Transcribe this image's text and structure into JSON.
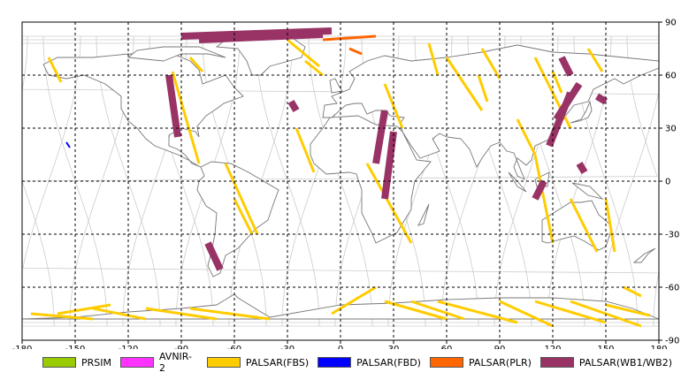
{
  "map": {
    "x_ticks": [
      "-180",
      "-150",
      "-120",
      "-90",
      "-60",
      "-30",
      "0",
      "30",
      "60",
      "90",
      "120",
      "150",
      "180"
    ],
    "y_ticks_right": [
      "90",
      "60",
      "30",
      "0",
      "-30",
      "-60",
      "-90"
    ],
    "lon_range": [
      -180,
      180
    ],
    "lat_range": [
      -90,
      90
    ],
    "grid": "dashed",
    "land_color": "#777777",
    "orbit_color": "#cccccc"
  },
  "legend": [
    {
      "label": "PRSIM",
      "color": "#99cc00"
    },
    {
      "label": "AVNIR-2",
      "color": "#ff33ff"
    },
    {
      "label": "PALSAR(FBS)",
      "color": "#ffcc00"
    },
    {
      "label": "PALSAR(FBD)",
      "color": "#0000ff"
    },
    {
      "label": "PALSAR(PLR)",
      "color": "#ff6600"
    },
    {
      "label": "PALSAR(WB1/WB2)",
      "color": "#993366"
    }
  ],
  "observations": {
    "fbs_swaths": [
      [
        [
          -165,
          70
        ],
        [
          -158,
          56
        ]
      ],
      [
        [
          -95,
          62
        ],
        [
          -80,
          10
        ]
      ],
      [
        [
          -65,
          10
        ],
        [
          -47,
          -30
        ]
      ],
      [
        [
          -60,
          -10
        ],
        [
          -50,
          -30
        ]
      ],
      [
        [
          -85,
          70
        ],
        [
          -78,
          62
        ]
      ],
      [
        [
          -30,
          80
        ],
        [
          -12,
          65
        ]
      ],
      [
        [
          -20,
          68
        ],
        [
          -10,
          60
        ]
      ],
      [
        [
          -25,
          30
        ],
        [
          -15,
          5
        ]
      ],
      [
        [
          25,
          55
        ],
        [
          35,
          30
        ]
      ],
      [
        [
          15,
          10
        ],
        [
          40,
          -35
        ]
      ],
      [
        [
          20,
          -60
        ],
        [
          -5,
          -75
        ]
      ],
      [
        [
          50,
          78
        ],
        [
          55,
          60
        ]
      ],
      [
        [
          80,
          75
        ],
        [
          90,
          58
        ]
      ],
      [
        [
          60,
          70
        ],
        [
          80,
          40
        ]
      ],
      [
        [
          78,
          60
        ],
        [
          83,
          45
        ]
      ],
      [
        [
          110,
          70
        ],
        [
          130,
          30
        ]
      ],
      [
        [
          100,
          35
        ],
        [
          110,
          15
        ]
      ],
      [
        [
          110,
          15
        ],
        [
          120,
          -35
        ]
      ],
      [
        [
          130,
          -10
        ],
        [
          145,
          -40
        ]
      ],
      [
        [
          140,
          75
        ],
        [
          148,
          62
        ]
      ],
      [
        [
          120,
          62
        ],
        [
          125,
          50
        ]
      ],
      [
        [
          150,
          -10
        ],
        [
          155,
          -40
        ]
      ],
      [
        [
          160,
          -60
        ],
        [
          170,
          -65
        ]
      ],
      [
        [
          -175,
          -75
        ],
        [
          -140,
          -78
        ]
      ],
      [
        [
          -140,
          -72
        ],
        [
          -110,
          -78
        ]
      ],
      [
        [
          -110,
          -72
        ],
        [
          -70,
          -78
        ]
      ],
      [
        [
          -85,
          -72
        ],
        [
          -40,
          -78
        ]
      ],
      [
        [
          25,
          -68
        ],
        [
          60,
          -78
        ]
      ],
      [
        [
          40,
          -68
        ],
        [
          70,
          -78
        ]
      ],
      [
        [
          55,
          -68
        ],
        [
          100,
          -80
        ]
      ],
      [
        [
          90,
          -68
        ],
        [
          120,
          -82
        ]
      ],
      [
        [
          110,
          -68
        ],
        [
          150,
          -80
        ]
      ],
      [
        [
          130,
          -68
        ],
        [
          170,
          -82
        ]
      ],
      [
        [
          150,
          -70
        ],
        [
          175,
          -76
        ]
      ],
      [
        [
          -160,
          -75
        ],
        [
          -130,
          -70
        ]
      ]
    ],
    "fbd_swaths": [
      [
        [
          -155,
          22
        ],
        [
          -153,
          19
        ]
      ]
    ],
    "plr_swaths": [
      [
        [
          -10,
          80
        ],
        [
          20,
          82
        ]
      ],
      [
        [
          5,
          75
        ],
        [
          12,
          72
        ]
      ],
      [
        [
          -60,
          82
        ],
        [
          -20,
          84
        ]
      ]
    ],
    "wb_swaths": [
      [
        [
          -97,
          60
        ],
        [
          -92,
          25
        ]
      ],
      [
        [
          -75,
          -35
        ],
        [
          -68,
          -50
        ]
      ],
      [
        [
          -28,
          45
        ],
        [
          -25,
          40
        ]
      ],
      [
        [
          25,
          40
        ],
        [
          20,
          10
        ]
      ],
      [
        [
          30,
          28
        ],
        [
          25,
          -10
        ]
      ],
      [
        [
          115,
          0
        ],
        [
          110,
          -10
        ]
      ],
      [
        [
          130,
          50
        ],
        [
          118,
          20
        ]
      ],
      [
        [
          135,
          55
        ],
        [
          122,
          35
        ]
      ],
      [
        [
          125,
          70
        ],
        [
          130,
          60
        ]
      ],
      [
        [
          145,
          48
        ],
        [
          150,
          45
        ]
      ],
      [
        [
          135,
          10
        ],
        [
          138,
          5
        ]
      ],
      [
        [
          -90,
          82
        ],
        [
          -5,
          85
        ]
      ],
      [
        [
          -80,
          80
        ],
        [
          -10,
          83
        ]
      ]
    ]
  }
}
